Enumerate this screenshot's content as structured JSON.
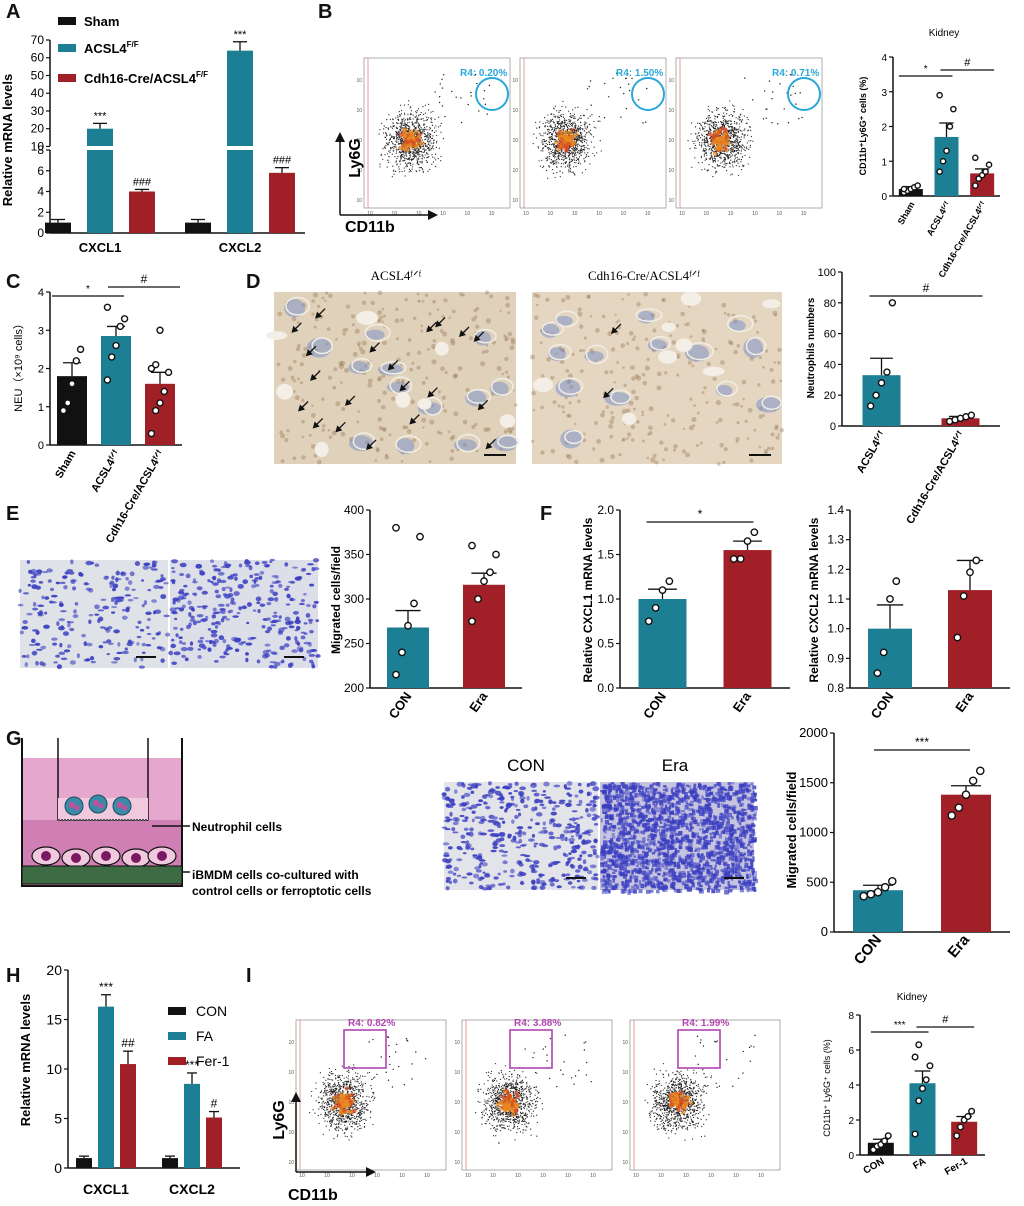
{
  "colors": {
    "sham": "#111111",
    "wt": "#1d7f93",
    "ko": "#a12028",
    "gate": "#2aa8d8",
    "gateI": "#b044b0",
    "stain": "#3a3ec0"
  },
  "panel_letters": [
    "A",
    "B",
    "C",
    "D",
    "E",
    "F",
    "G",
    "H",
    "I"
  ],
  "panelA": {
    "legend": [
      "Sham",
      "ACSL4",
      "Cdh16-Cre/ACSL4"
    ],
    "legend_sup": "F/F",
    "ylabel": "Relative mRNA levels",
    "upper_ticks": [
      "10",
      "20",
      "30",
      "40",
      "50",
      "60",
      "70"
    ],
    "lower_ticks": [
      "0",
      "2",
      "4",
      "6",
      "8"
    ]
  },
  "panelB": {
    "title": "Kidney",
    "gates": [
      "R4: 0.20%",
      "R4: 1.50%",
      "R4: 0.71%"
    ],
    "axis_y": "Ly6G",
    "axis_x": "CD11b",
    "ylabel": "CD11b⁺Ly6G⁺ cells (%)",
    "ticks": [
      "0",
      "1",
      "2",
      "3",
      "4"
    ],
    "sig1": "*",
    "sig2": "#"
  },
  "panelC": {
    "ylabel": "NEU（×10⁹ cells）",
    "ticks": [
      "0",
      "1",
      "2",
      "3",
      "4"
    ],
    "sig1": "*",
    "sig2": "#"
  },
  "panelD": {
    "img_labels": [
      "ACSL4ᶠᐟᶠ",
      "Cdh16-Cre/ACSL4ᶠᐟᶠ"
    ],
    "ylabel": "Neutrophils numbers",
    "ticks": [
      "0",
      "20",
      "40",
      "60",
      "80",
      "100"
    ],
    "sig": "#",
    "categories": [
      "ACSL4ᶠᐟᶠ",
      "Cdh16-Cre/ACSL4ᶠᐟᶠ"
    ]
  },
  "panelE": {
    "ylabel": "Migrated cells/field",
    "ticks": [
      "200",
      "250",
      "300",
      "350",
      "400"
    ]
  },
  "panelF": {
    "ylabel1": "Relative CXCL1 mRNA levels",
    "ticks1": [
      "0.0",
      "0.5",
      "1.0",
      "1.5",
      "2.0"
    ],
    "sig": "*",
    "ylabel2": "Relative CXCL2 mRNA levels",
    "ticks2": [
      "0.8",
      "0.9",
      "1.0",
      "1.1",
      "1.2",
      "1.3",
      "1.4"
    ]
  },
  "panelG": {
    "labels": [
      "Neutrophil cells",
      "iBMDM cells co-cultured with",
      "control cells or ferroptotic cells"
    ],
    "img_titles": [
      "CON",
      "Era"
    ],
    "ylabel": "Migrated cells/field",
    "ticks": [
      "0",
      "500",
      "1000",
      "1500",
      "2000"
    ],
    "sig": "***"
  },
  "panelH": {
    "legend": [
      "CON",
      "FA",
      "Fer-1"
    ],
    "ylabel": "Relative mRNA levels",
    "ticks": [
      "0",
      "5",
      "10",
      "15",
      "20"
    ]
  },
  "panelI": {
    "title": "Kidney",
    "gates": [
      "R4: 0.82%",
      "R4: 3.88%",
      "R4: 1.99%"
    ],
    "axis_y": "Ly6G",
    "axis_x": "CD11b",
    "ylabel": "CD11b⁺ Ly6G⁺ cells (%)",
    "ticks": [
      "0",
      "2",
      "4",
      "6",
      "8"
    ],
    "sig1": "***",
    "sig2": "#"
  },
  "chart_data": [
    {
      "panel": "A",
      "type": "bar",
      "categories": [
        "CXCL1",
        "CXCL2"
      ],
      "series": [
        {
          "name": "Sham",
          "values": [
            1,
            1
          ],
          "err": [
            0.3,
            0.3
          ],
          "sig": [
            "",
            ""
          ]
        },
        {
          "name": "ACSL4F/F",
          "values": [
            20,
            64
          ],
          "err": [
            3,
            5
          ],
          "sig": [
            "***",
            "***"
          ]
        },
        {
          "name": "Cdh16-Cre/ACSL4F/F",
          "values": [
            4,
            5.8
          ],
          "err": [
            0.2,
            0.5
          ],
          "sig": [
            "###",
            "###"
          ]
        }
      ],
      "ylabel": "Relative mRNA levels"
    },
    {
      "panel": "B",
      "type": "bar",
      "categories": [
        "Sham",
        "ACSL4F/F",
        "Cdh16-Cre/ACSL4F/F"
      ],
      "values": [
        0.2,
        1.7,
        0.65
      ],
      "err": [
        0.07,
        0.4,
        0.13
      ],
      "points": [
        [
          0.1,
          0.15,
          0.2,
          0.25,
          0.3,
          0.2
        ],
        [
          0.7,
          1.0,
          1.3,
          2.0,
          2.5,
          2.9
        ],
        [
          0.3,
          0.5,
          0.6,
          0.7,
          0.9,
          1.1
        ]
      ],
      "ylabel": "CD11b+Ly6G+ cells (%)",
      "ylim": [
        0,
        4
      ]
    },
    {
      "panel": "C",
      "type": "bar",
      "categories": [
        "Sham",
        "ACSL4F/F",
        "Cdh16-Cre/ACSL4F/F"
      ],
      "values": [
        1.8,
        2.85,
        1.6
      ],
      "err": [
        0.35,
        0.25,
        0.3
      ],
      "points": [
        [
          0.9,
          1.1,
          1.6,
          2.2,
          2.5
        ],
        [
          1.7,
          2.3,
          2.6,
          3.1,
          3.3,
          3.6
        ],
        [
          0.3,
          0.9,
          1.1,
          1.4,
          1.9,
          2.0,
          2.1,
          3.0
        ]
      ],
      "ylabel": "NEU (×10^9 cells)",
      "ylim": [
        0,
        4
      ]
    },
    {
      "panel": "D",
      "type": "bar",
      "categories": [
        "ACSL4F/F",
        "Cdh16-Cre/ACSL4F/F"
      ],
      "values": [
        33,
        5
      ],
      "err": [
        11,
        1.2
      ],
      "points": [
        [
          13,
          20,
          28,
          35,
          80
        ],
        [
          3,
          4,
          5,
          6,
          7
        ]
      ],
      "ylabel": "Neutrophils numbers",
      "ylim": [
        0,
        100
      ]
    },
    {
      "panel": "E",
      "type": "bar",
      "categories": [
        "CON",
        "Era"
      ],
      "values": [
        268,
        316
      ],
      "err": [
        19,
        13
      ],
      "points": [
        [
          215,
          240,
          270,
          295,
          370,
          380
        ],
        [
          275,
          300,
          320,
          330,
          350,
          360
        ]
      ],
      "ylabel": "Migrated cells/field",
      "ylim": [
        200,
        400
      ]
    },
    {
      "panel": "F1",
      "type": "bar",
      "categories": [
        "CON",
        "Era"
      ],
      "values": [
        1.0,
        1.55
      ],
      "err": [
        0.11,
        0.1
      ],
      "points": [
        [
          0.75,
          0.9,
          1.1,
          1.2
        ],
        [
          1.45,
          1.45,
          1.65,
          1.75
        ]
      ],
      "ylabel": "Relative CXCL1 mRNA levels",
      "ylim": [
        0,
        2
      ]
    },
    {
      "panel": "F2",
      "type": "bar",
      "categories": [
        "CON",
        "Era"
      ],
      "values": [
        1.0,
        1.13
      ],
      "err": [
        0.08,
        0.1
      ],
      "points": [
        [
          0.85,
          0.92,
          1.1,
          1.16
        ],
        [
          0.97,
          1.11,
          1.19,
          1.23
        ]
      ],
      "ylabel": "Relative CXCL2 mRNA levels",
      "ylim": [
        0.8,
        1.4
      ]
    },
    {
      "panel": "G",
      "type": "bar",
      "categories": [
        "CON",
        "Era"
      ],
      "values": [
        420,
        1380
      ],
      "err": [
        50,
        90
      ],
      "points": [
        [
          360,
          380,
          400,
          450,
          510
        ],
        [
          1170,
          1250,
          1380,
          1520,
          1620
        ]
      ],
      "ylabel": "Migrated cells/field",
      "ylim": [
        0,
        2000
      ]
    },
    {
      "panel": "H",
      "type": "bar",
      "categories": [
        "CXCL1",
        "CXCL2"
      ],
      "series": [
        {
          "name": "CON",
          "values": [
            1,
            1
          ],
          "err": [
            0.2,
            0.2
          ],
          "sig": [
            "",
            ""
          ]
        },
        {
          "name": "FA",
          "values": [
            16.3,
            8.5
          ],
          "err": [
            1.2,
            1.1
          ],
          "sig": [
            "***",
            "***"
          ]
        },
        {
          "name": "Fer-1",
          "values": [
            10.5,
            5.1
          ],
          "err": [
            1.3,
            0.6
          ],
          "sig": [
            "##",
            "#"
          ]
        }
      ],
      "ylabel": "Relative mRNA levels",
      "ylim": [
        0,
        20
      ]
    },
    {
      "panel": "I",
      "type": "bar",
      "categories": [
        "CON",
        "FA",
        "Fer-1"
      ],
      "values": [
        0.7,
        4.1,
        1.9
      ],
      "err": [
        0.2,
        0.7,
        0.3
      ],
      "points": [
        [
          0.3,
          0.5,
          0.6,
          0.8,
          1.1
        ],
        [
          1.2,
          3.1,
          3.8,
          4.3,
          5.1,
          5.6,
          6.3
        ],
        [
          1.1,
          1.6,
          2.0,
          2.2,
          2.5
        ]
      ],
      "ylabel": "CD11b+ Ly6G+ cells (%)",
      "ylim": [
        0,
        8
      ]
    }
  ]
}
